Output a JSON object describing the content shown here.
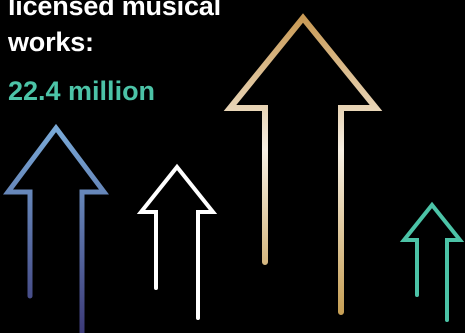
{
  "headline": {
    "line1": "licensed musical",
    "line2": "works:"
  },
  "stat": {
    "value": "22.4 million"
  },
  "colors": {
    "background": "#000000",
    "text": "#ffffff",
    "accent_teal": "#4cc3a7",
    "arrow_blue_top": "#7aaad8",
    "arrow_blue_bottom": "#3c3a78",
    "arrow_white": "#ffffff",
    "arrow_gold_top": "#c99a55",
    "arrow_gold_mid": "#f6efe3",
    "arrow_gold_bottom": "#c7a056",
    "arrow_teal": "#4cc3a7"
  },
  "decorations": {
    "arrows": [
      "arrow-blue-icon",
      "arrow-white-icon",
      "arrow-gold-icon",
      "arrow-teal-icon"
    ]
  }
}
